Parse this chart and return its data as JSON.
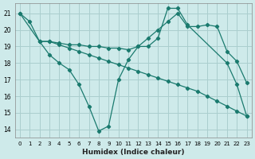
{
  "xlabel": "Humidex (Indice chaleur)",
  "background_color": "#ceeaea",
  "grid_color": "#aacece",
  "line_color": "#1a7a6e",
  "xlim": [
    -0.5,
    23.5
  ],
  "ylim": [
    13.5,
    21.6
  ],
  "yticks": [
    14,
    15,
    16,
    17,
    18,
    19,
    20,
    21
  ],
  "xticks": [
    0,
    1,
    2,
    3,
    4,
    5,
    6,
    7,
    8,
    9,
    10,
    11,
    12,
    13,
    14,
    15,
    16,
    17,
    18,
    19,
    20,
    21,
    22,
    23
  ],
  "lines": [
    {
      "x": [
        0,
        1,
        2,
        3,
        4,
        5,
        6,
        7,
        8,
        9,
        10,
        11,
        12,
        13,
        14,
        15,
        16,
        17,
        21,
        22,
        23
      ],
      "y": [
        21.0,
        20.5,
        19.3,
        18.5,
        18.0,
        17.6,
        16.7,
        15.4,
        13.9,
        14.2,
        17.0,
        18.2,
        19.0,
        19.0,
        19.5,
        21.3,
        21.3,
        20.3,
        18.0,
        16.7,
        14.8
      ]
    },
    {
      "x": [
        0,
        2,
        3,
        4,
        5,
        6,
        7,
        8,
        9,
        10,
        11,
        12,
        13,
        14,
        15,
        16,
        17,
        18,
        19,
        20,
        21,
        22,
        23
      ],
      "y": [
        21.0,
        19.3,
        19.3,
        19.1,
        18.9,
        18.7,
        18.5,
        18.3,
        18.1,
        17.9,
        17.7,
        17.5,
        17.3,
        17.1,
        16.9,
        16.7,
        16.5,
        16.3,
        16.0,
        15.7,
        15.4,
        15.1,
        14.8
      ]
    },
    {
      "x": [
        2,
        3,
        4,
        5,
        6,
        7,
        8,
        9,
        10,
        11,
        12,
        13,
        14,
        15,
        16,
        17,
        18,
        19,
        20,
        21,
        22,
        23
      ],
      "y": [
        19.3,
        19.3,
        19.2,
        19.1,
        19.1,
        19.0,
        19.0,
        18.9,
        18.9,
        18.8,
        19.0,
        19.5,
        20.0,
        20.5,
        21.0,
        20.2,
        20.2,
        20.3,
        20.2,
        18.7,
        18.1,
        16.8
      ]
    }
  ]
}
